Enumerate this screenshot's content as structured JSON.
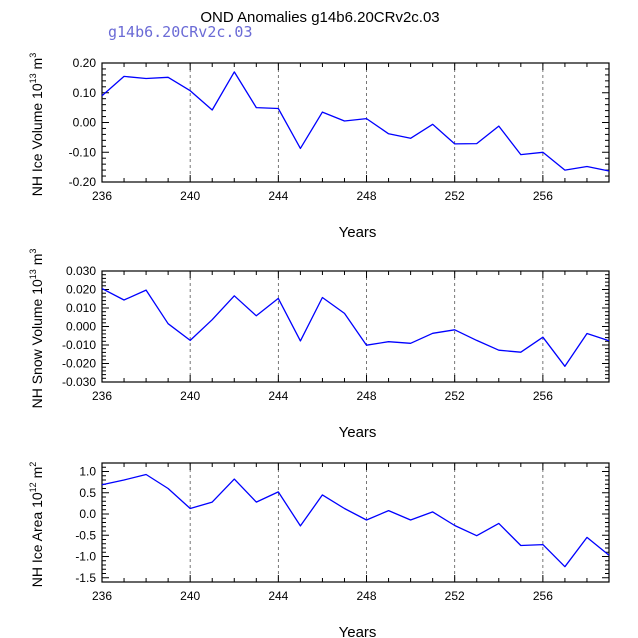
{
  "title": "OND Anomalies g14b6.20CRv2c.03",
  "subtitle": "g14b6.20CRv2c.03",
  "chart_data": [
    {
      "type": "line",
      "id": "ice-volume",
      "ylabel_main": "NH Ice Volume 10",
      "ylabel_exp": "13",
      "ylabel_unit": " m",
      "ylabel_unit_exp": "3",
      "xlabel": "Years",
      "xlim": [
        236,
        259
      ],
      "ylim": [
        -0.2,
        0.2
      ],
      "xticks": [
        236,
        240,
        244,
        248,
        252,
        256
      ],
      "xtick_labels": [
        "236",
        "240",
        "244",
        "248",
        "252",
        "256"
      ],
      "yticks": [
        0.2,
        0.1,
        0.0,
        -0.1,
        -0.2
      ],
      "ytick_labels": [
        "0.20",
        "0.10",
        "0.00",
        "-0.10",
        "-0.20"
      ],
      "line_color": "#0000ff",
      "x": [
        236,
        237,
        238,
        239,
        240,
        241,
        242,
        243,
        244,
        245,
        246,
        247,
        248,
        249,
        250,
        251,
        252,
        253,
        254,
        255,
        256,
        257,
        258,
        259
      ],
      "y": [
        0.09,
        0.155,
        0.148,
        0.152,
        0.107,
        0.042,
        0.17,
        0.05,
        0.047,
        -0.087,
        0.035,
        0.005,
        0.013,
        -0.038,
        -0.053,
        -0.006,
        -0.072,
        -0.071,
        -0.012,
        -0.108,
        -0.1,
        -0.16,
        -0.148,
        -0.163
      ]
    },
    {
      "type": "line",
      "id": "snow-volume",
      "ylabel_main": "NH Snow Volume 10",
      "ylabel_exp": "13",
      "ylabel_unit": " m",
      "ylabel_unit_exp": "3",
      "xlabel": "Years",
      "xlim": [
        236,
        259
      ],
      "ylim": [
        -0.03,
        0.03
      ],
      "xticks": [
        236,
        240,
        244,
        248,
        252,
        256
      ],
      "xtick_labels": [
        "236",
        "240",
        "244",
        "248",
        "252",
        "256"
      ],
      "yticks": [
        0.03,
        0.02,
        0.01,
        0.0,
        -0.01,
        -0.02,
        -0.03
      ],
      "ytick_labels": [
        "0.030",
        "0.020",
        "0.010",
        "0.000",
        "-0.010",
        "-0.020",
        "-0.030"
      ],
      "line_color": "#0000ff",
      "x": [
        236,
        237,
        238,
        239,
        240,
        241,
        242,
        243,
        244,
        245,
        246,
        247,
        248,
        249,
        250,
        251,
        252,
        253,
        254,
        255,
        256,
        257,
        258,
        259
      ],
      "y": [
        0.0205,
        0.0143,
        0.0197,
        0.0015,
        -0.0075,
        0.0037,
        0.0166,
        0.0058,
        0.0152,
        -0.0078,
        0.0157,
        0.0071,
        -0.0101,
        -0.0082,
        -0.0091,
        -0.0037,
        -0.0018,
        -0.0075,
        -0.0128,
        -0.0139,
        -0.0058,
        -0.0215,
        -0.0038,
        -0.0077
      ]
    },
    {
      "type": "line",
      "id": "ice-area",
      "ylabel_main": "NH Ice Area 10",
      "ylabel_exp": "12",
      "ylabel_unit": " m",
      "ylabel_unit_exp": "2",
      "xlabel": "Years",
      "xlim": [
        236,
        259
      ],
      "ylim": [
        -1.6,
        1.2
      ],
      "xticks": [
        236,
        240,
        244,
        248,
        252,
        256
      ],
      "xtick_labels": [
        "236",
        "240",
        "244",
        "248",
        "252",
        "256"
      ],
      "yticks": [
        1.0,
        0.5,
        0.0,
        -0.5,
        -1.0,
        -1.5
      ],
      "ytick_labels": [
        "1.0",
        "0.5",
        "0.0",
        "-0.5",
        "-1.0",
        "-1.5"
      ],
      "line_color": "#0000ff",
      "x": [
        236,
        237,
        238,
        239,
        240,
        241,
        242,
        243,
        244,
        245,
        246,
        247,
        248,
        249,
        250,
        251,
        252,
        253,
        254,
        255,
        256,
        257,
        258,
        259
      ],
      "y": [
        0.69,
        0.8,
        0.93,
        0.6,
        0.13,
        0.28,
        0.82,
        0.28,
        0.52,
        -0.28,
        0.45,
        0.13,
        -0.14,
        0.08,
        -0.14,
        0.05,
        -0.27,
        -0.51,
        -0.22,
        -0.74,
        -0.72,
        -1.24,
        -0.55,
        -0.97
      ]
    }
  ]
}
